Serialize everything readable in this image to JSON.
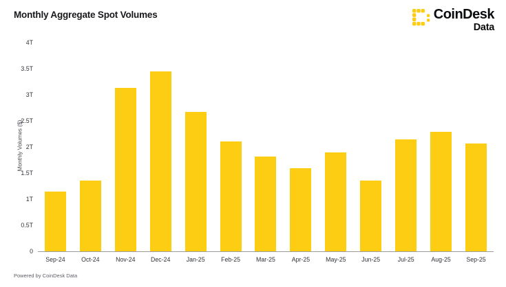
{
  "header": {
    "title": "Monthly Aggregate Spot Volumes",
    "logo": {
      "brand": "CoinDesk",
      "sub": "Data"
    }
  },
  "footer": {
    "text": "Powered by CoinDesk Data"
  },
  "colors": {
    "brand_yellow": "#FCCD12",
    "axis_line": "#9B9B9B",
    "title_text": "#17181B",
    "tick_text": "#303338"
  },
  "chart_data": {
    "type": "bar",
    "title": "Monthly Aggregate Spot Volumes",
    "categories": [
      "Sep-24",
      "Oct-24",
      "Nov-24",
      "Dec-24",
      "Jan-25",
      "Feb-25",
      "Mar-25",
      "Apr-25",
      "May-25",
      "Jun-25",
      "Jul-25",
      "Aug-25",
      "Sep-25"
    ],
    "values": [
      1.15,
      1.35,
      3.13,
      3.45,
      2.67,
      2.11,
      1.81,
      1.59,
      1.9,
      1.36,
      2.15,
      2.29,
      2.06
    ],
    "unit": "T",
    "xlabel": "",
    "ylabel": "Monthly Volumes ($)",
    "ylim": [
      0,
      4
    ],
    "yticks": [
      "0",
      "0.5T",
      "1T",
      "1.5T",
      "2T",
      "2.5T",
      "3T",
      "3.5T",
      "4T"
    ],
    "grid": false,
    "legend": "none",
    "bar_color": "#FCCD12"
  }
}
